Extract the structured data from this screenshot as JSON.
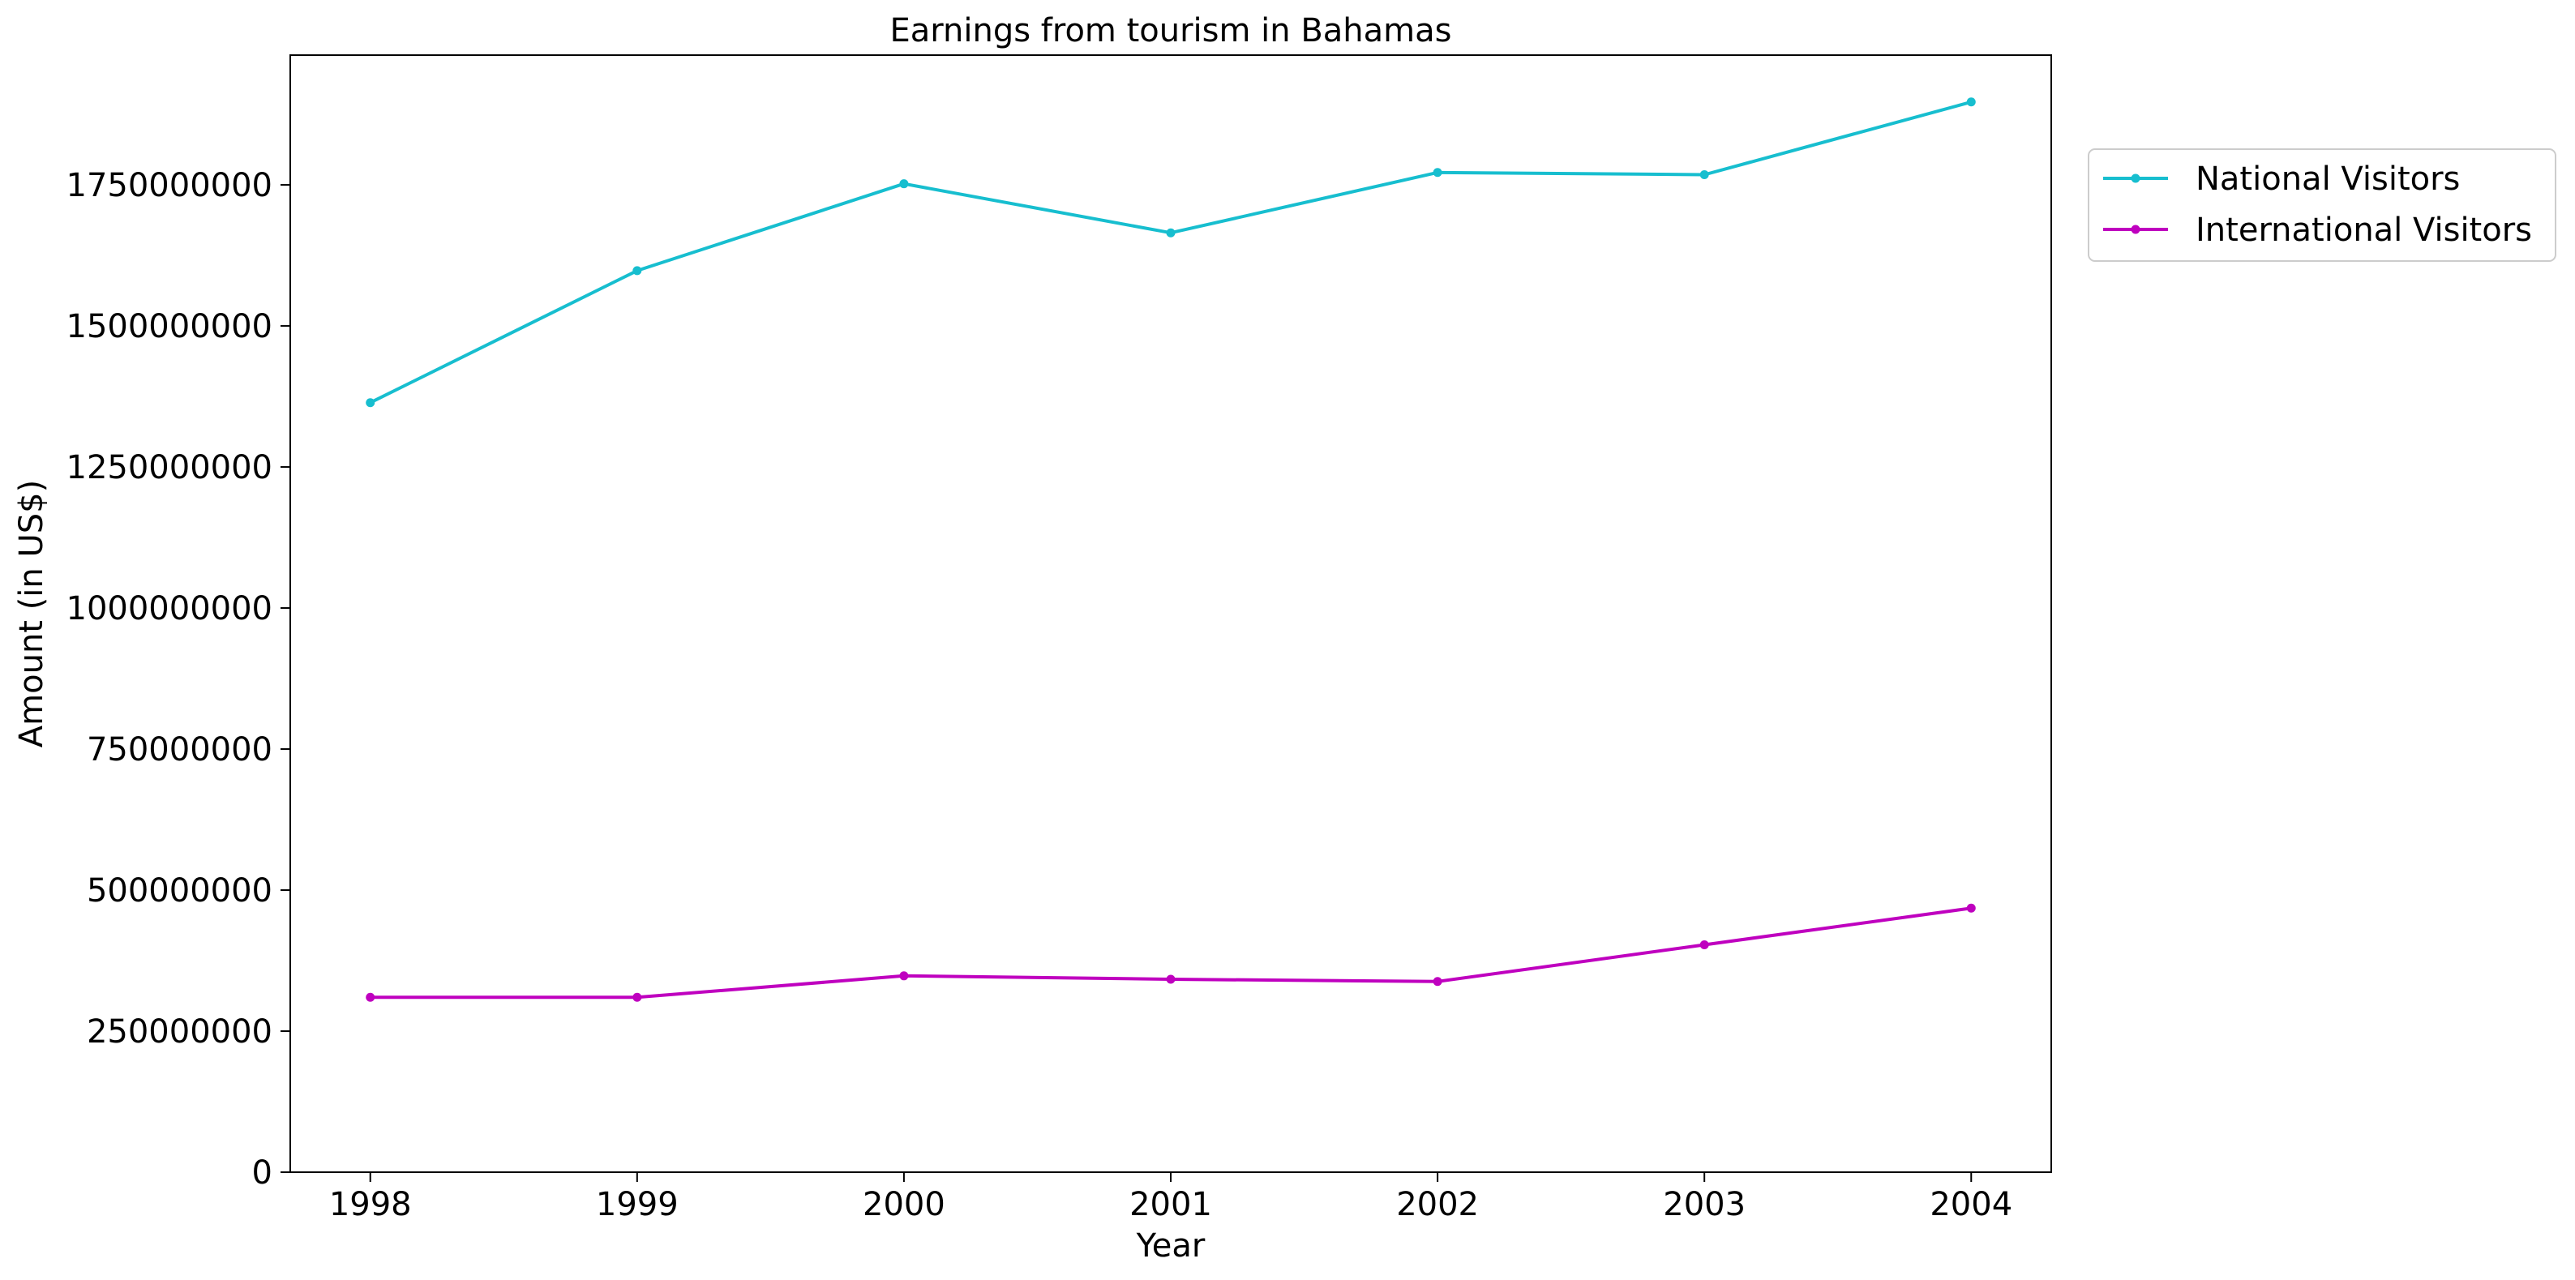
{
  "chart_data": {
    "type": "line",
    "title": "Earnings from tourism in Bahamas",
    "xlabel": "Year",
    "ylabel": "Amount (in US$)",
    "x": [
      1998,
      1999,
      2000,
      2001,
      2002,
      2003,
      2004
    ],
    "x_tick_labels": [
      "1998",
      "1999",
      "2000",
      "2001",
      "2002",
      "2003",
      "2004"
    ],
    "y_ticks": [
      0,
      250000000,
      500000000,
      750000000,
      1000000000,
      1250000000,
      1500000000,
      1750000000
    ],
    "y_tick_labels": [
      "0",
      "250000000",
      "500000000",
      "750000000",
      "1000000000",
      "1250000000",
      "1500000000",
      "1750000000"
    ],
    "ylim": [
      0,
      1980000000
    ],
    "xlim": [
      1997.7,
      2004.3
    ],
    "grid": false,
    "legend_position": "outside-top-right",
    "series": [
      {
        "name": "National Visitors",
        "color": "#17becf",
        "values": [
          1364000000,
          1598000000,
          1752000000,
          1665000000,
          1772000000,
          1768000000,
          1897000000
        ]
      },
      {
        "name": "International Visitors",
        "color": "#bf00bf",
        "values": [
          310000000,
          310000000,
          348000000,
          342000000,
          338000000,
          403000000,
          468000000
        ]
      }
    ]
  }
}
